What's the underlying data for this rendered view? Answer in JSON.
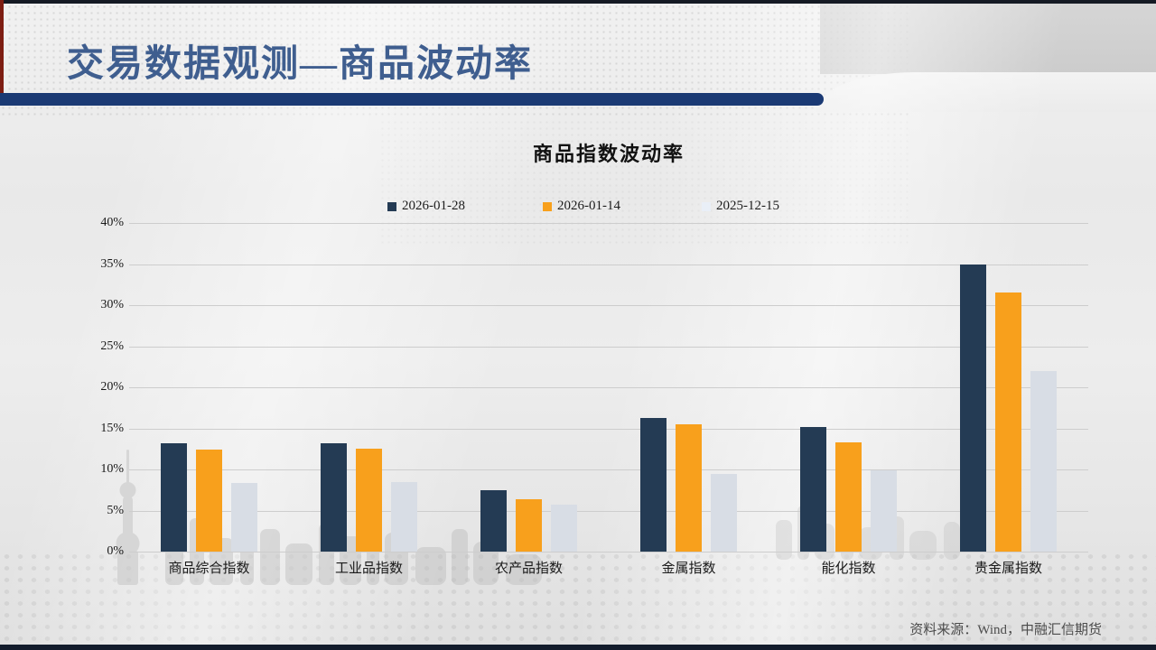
{
  "slide": {
    "title": "交易数据观测—商品波动率",
    "source": "资料来源：Wind，中融汇信期货"
  },
  "colors": {
    "header_title_blue": "#3f5e8f",
    "divider_navy": "#1b3a74",
    "left_accent_red": "#7d1d12",
    "bottom_bar_navy": "#131c2c"
  },
  "chart_data": {
    "type": "bar",
    "title": "商品指数波动率",
    "categories": [
      "商品综合指数",
      "工业品指数",
      "农产品指数",
      "金属指数",
      "能化指数",
      "贵金属指数"
    ],
    "series": [
      {
        "name": "2026-01-28",
        "color": "#243b54",
        "values": [
          13.2,
          13.2,
          7.5,
          16.3,
          15.2,
          34.9
        ]
      },
      {
        "name": "2026-01-14",
        "color": "#f8a01c",
        "values": [
          12.4,
          12.5,
          6.4,
          15.5,
          13.3,
          31.5
        ]
      },
      {
        "name": "2025-12-15",
        "color": "#d8dde5",
        "legend_color": "#e9eff7",
        "values": [
          8.3,
          8.5,
          5.7,
          9.5,
          9.9,
          22.0
        ]
      }
    ],
    "xlabel": "",
    "ylabel": "",
    "ylim": [
      0,
      40
    ],
    "ystep": 5,
    "ytick_suffix": "%",
    "grid": true,
    "legend_position": "top"
  }
}
